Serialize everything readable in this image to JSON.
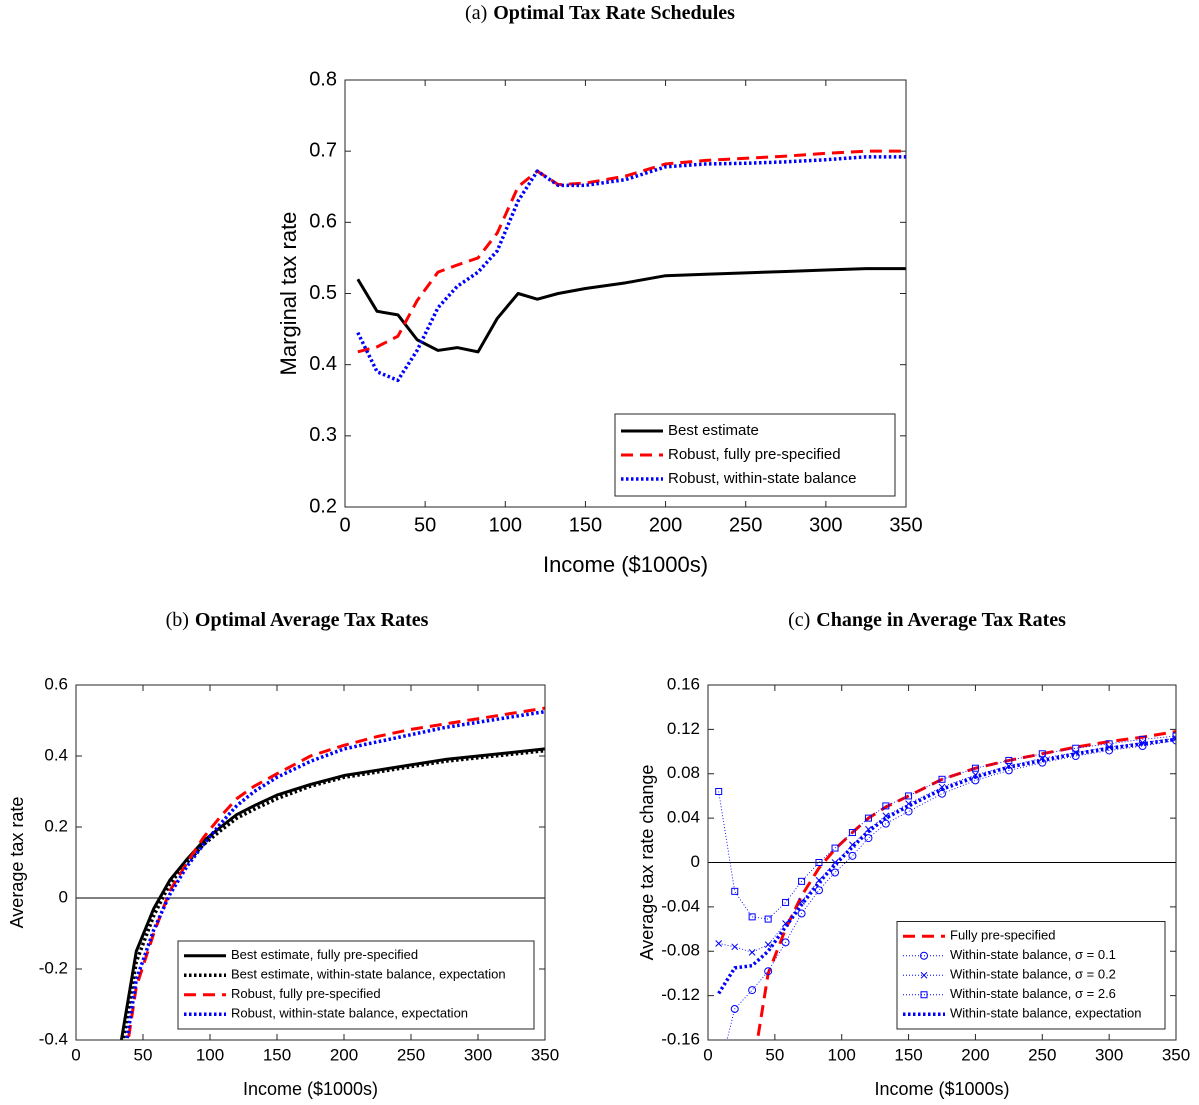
{
  "chart_data": [
    {
      "type": "line",
      "label": "(a)",
      "title": "Optimal Tax Rate Schedules",
      "xlabel": "Income ($1000s)",
      "ylabel": "Marginal tax rate",
      "xlim": [
        0,
        350
      ],
      "ylim": [
        0.2,
        0.8
      ],
      "xticks": [
        0,
        50,
        100,
        150,
        200,
        250,
        300,
        350
      ],
      "yticks": [
        0.2,
        0.3,
        0.4,
        0.5,
        0.6,
        0.7,
        0.8
      ],
      "legend": "lower right",
      "x": [
        8,
        20,
        33,
        45,
        58,
        70,
        83,
        95,
        108,
        120,
        133,
        150,
        175,
        200,
        225,
        250,
        275,
        300,
        325,
        350
      ],
      "series": [
        {
          "name": "Best estimate",
          "color": "#000000",
          "style": "solid",
          "values": [
            0.52,
            0.475,
            0.47,
            0.435,
            0.42,
            0.424,
            0.418,
            0.465,
            0.5,
            0.492,
            0.5,
            0.507,
            0.515,
            0.525,
            0.527,
            0.529,
            0.531,
            0.533,
            0.535,
            0.535
          ]
        },
        {
          "name": "Robust, fully pre-specified",
          "color": "#ff0000",
          "style": "dashed",
          "values": [
            0.418,
            0.425,
            0.44,
            0.49,
            0.53,
            0.54,
            0.55,
            0.585,
            0.65,
            0.672,
            0.653,
            0.655,
            0.665,
            0.682,
            0.687,
            0.69,
            0.693,
            0.697,
            0.7,
            0.7
          ]
        },
        {
          "name": "Robust, within-state balance",
          "color": "#0000ff",
          "style": "dotted",
          "values": [
            0.445,
            0.39,
            0.378,
            0.42,
            0.48,
            0.51,
            0.53,
            0.56,
            0.63,
            0.672,
            0.652,
            0.652,
            0.66,
            0.678,
            0.682,
            0.683,
            0.685,
            0.688,
            0.692,
            0.692
          ]
        }
      ]
    },
    {
      "type": "line",
      "label": "(b)",
      "title": "Optimal Average Tax Rates",
      "xlabel": "Income ($1000s)",
      "ylabel": "Average tax rate",
      "xlim": [
        0,
        350
      ],
      "ylim": [
        -0.4,
        0.6
      ],
      "xticks": [
        0,
        50,
        100,
        150,
        200,
        250,
        300,
        350
      ],
      "yticks": [
        -0.4,
        -0.2,
        0,
        0.2,
        0.4,
        0.6
      ],
      "reference_line": 0,
      "legend": "lower right",
      "x": [
        33,
        45,
        58,
        70,
        83,
        95,
        108,
        120,
        133,
        150,
        175,
        200,
        225,
        250,
        275,
        300,
        325,
        350
      ],
      "series": [
        {
          "name": "Best estimate, fully pre-specified",
          "color": "#000000",
          "style": "solid",
          "values": [
            -0.42,
            -0.15,
            -0.03,
            0.05,
            0.11,
            0.16,
            0.2,
            0.235,
            0.26,
            0.29,
            0.32,
            0.345,
            0.36,
            0.375,
            0.39,
            0.4,
            0.41,
            0.42
          ]
        },
        {
          "name": "Best estimate, within-state balance, expectation",
          "color": "#000000",
          "style": "dotted",
          "values": [
            -0.45,
            -0.18,
            -0.05,
            0.04,
            0.1,
            0.15,
            0.19,
            0.225,
            0.25,
            0.28,
            0.315,
            0.34,
            0.355,
            0.37,
            0.385,
            0.395,
            0.405,
            0.415
          ]
        },
        {
          "name": "Robust, fully pre-specified",
          "color": "#ff0000",
          "style": "dashed",
          "values": [
            -0.55,
            -0.25,
            -0.1,
            0.02,
            0.1,
            0.17,
            0.23,
            0.28,
            0.315,
            0.35,
            0.4,
            0.43,
            0.455,
            0.475,
            0.49,
            0.505,
            0.52,
            0.535
          ]
        },
        {
          "name": "Robust, within-state balance, expectation",
          "color": "#0000ff",
          "style": "dotted",
          "values": [
            -0.52,
            -0.23,
            -0.09,
            0.01,
            0.09,
            0.15,
            0.21,
            0.26,
            0.3,
            0.34,
            0.385,
            0.42,
            0.44,
            0.46,
            0.48,
            0.495,
            0.51,
            0.525
          ]
        }
      ]
    },
    {
      "type": "line",
      "label": "(c)",
      "title": "Change in Average Tax Rates",
      "xlabel": "Income ($1000s)",
      "ylabel": "Average tax rate change",
      "xlim": [
        0,
        350
      ],
      "ylim": [
        -0.16,
        0.16
      ],
      "xticks": [
        0,
        50,
        100,
        150,
        200,
        250,
        300,
        350
      ],
      "yticks": [
        -0.16,
        -0.12,
        -0.08,
        -0.04,
        0,
        0.04,
        0.08,
        0.12,
        0.16
      ],
      "reference_line": 0,
      "legend": "lower right",
      "x": [
        8,
        20,
        33,
        45,
        58,
        70,
        83,
        95,
        108,
        120,
        133,
        150,
        175,
        200,
        225,
        250,
        275,
        300,
        325,
        350
      ],
      "series": [
        {
          "name": "Fully pre-specified",
          "color": "#ff0000",
          "style": "dashed",
          "values": [
            null,
            null,
            -0.19,
            -0.1,
            -0.06,
            -0.03,
            -0.005,
            0.012,
            0.027,
            0.04,
            0.05,
            0.06,
            0.075,
            0.085,
            0.092,
            0.098,
            0.104,
            0.109,
            0.113,
            0.118
          ]
        },
        {
          "name": "Within-state balance, σ = 0.1",
          "color": "#0000ff",
          "style": "thin-dotted",
          "marker": "o",
          "values": [
            -0.19,
            -0.132,
            -0.115,
            -0.098,
            -0.072,
            -0.046,
            -0.025,
            -0.009,
            0.006,
            0.022,
            0.035,
            0.046,
            0.062,
            0.074,
            0.083,
            0.09,
            0.096,
            0.101,
            0.105,
            0.11
          ]
        },
        {
          "name": "Within-state balance, σ = 0.2",
          "color": "#0000ff",
          "style": "thin-dotted",
          "marker": "x",
          "values": [
            -0.073,
            -0.076,
            -0.081,
            -0.074,
            -0.055,
            -0.035,
            -0.016,
            0,
            0.016,
            0.03,
            0.042,
            0.053,
            0.068,
            0.079,
            0.087,
            0.094,
            0.099,
            0.104,
            0.108,
            0.112
          ]
        },
        {
          "name": "Within-state balance, σ = 2.6",
          "color": "#0000ff",
          "style": "thin-dotted",
          "marker": "s",
          "values": [
            0.064,
            -0.026,
            -0.049,
            -0.051,
            -0.036,
            -0.017,
            0,
            0.013,
            0.027,
            0.04,
            0.051,
            0.06,
            0.075,
            0.085,
            0.092,
            0.098,
            0.103,
            0.107,
            0.111,
            0.114
          ]
        },
        {
          "name": "Within-state balance, expectation",
          "color": "#0000ff",
          "style": "dotted",
          "values": [
            -0.118,
            -0.095,
            -0.093,
            -0.08,
            -0.058,
            -0.038,
            -0.018,
            -0.002,
            0.014,
            0.028,
            0.04,
            0.051,
            0.066,
            0.077,
            0.086,
            0.092,
            0.098,
            0.103,
            0.107,
            0.111
          ]
        }
      ]
    }
  ]
}
